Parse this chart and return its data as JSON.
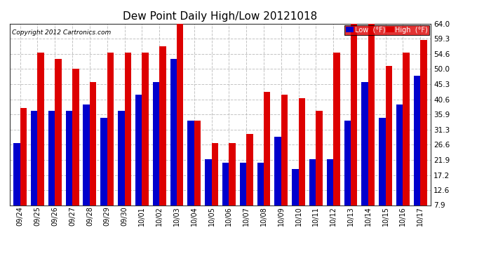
{
  "title": "Dew Point Daily High/Low 20121018",
  "copyright": "Copyright 2012 Cartronics.com",
  "dates": [
    "09/24",
    "09/25",
    "09/26",
    "09/27",
    "09/28",
    "09/29",
    "09/30",
    "10/01",
    "10/02",
    "10/03",
    "10/04",
    "10/05",
    "10/06",
    "10/07",
    "10/08",
    "10/09",
    "10/10",
    "10/11",
    "10/12",
    "10/13",
    "10/14",
    "10/15",
    "10/16",
    "10/17"
  ],
  "low_values": [
    27,
    37,
    37,
    37,
    39,
    35,
    37,
    42,
    46,
    53,
    34,
    22,
    21,
    21,
    21,
    29,
    19,
    22,
    22,
    34,
    46,
    35,
    39,
    48
  ],
  "high_values": [
    38,
    55,
    53,
    50,
    46,
    55,
    55,
    55,
    57,
    64,
    34,
    27,
    27,
    30,
    43,
    42,
    41,
    37,
    55,
    64,
    64,
    51,
    55,
    59
  ],
  "ylim_min": 7.9,
  "ylim_max": 64.0,
  "yticks": [
    7.9,
    12.6,
    17.2,
    21.9,
    26.6,
    31.3,
    35.9,
    40.6,
    45.3,
    50.0,
    54.6,
    59.3,
    64.0
  ],
  "low_color": "#0000cc",
  "high_color": "#dd0000",
  "bg_color": "#ffffff",
  "grid_color": "#aaaaaa",
  "bar_width": 0.38,
  "legend_low_bg": "#0000cc",
  "legend_high_bg": "#dd0000"
}
